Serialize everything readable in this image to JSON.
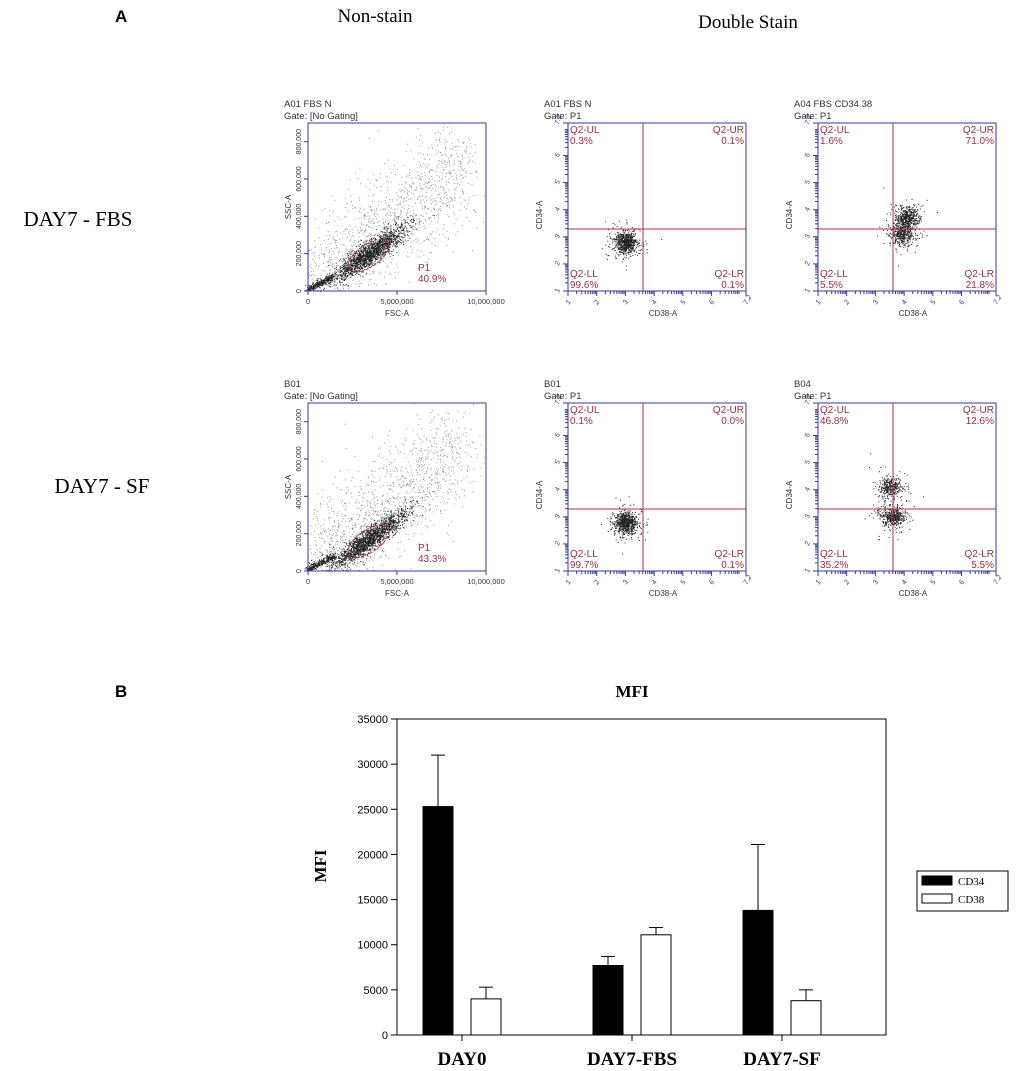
{
  "panel_a": {
    "label": "A",
    "column_headers": [
      "Non-stain",
      "Double Stain"
    ],
    "row_labels": [
      "DAY7 - FBS",
      "DAY7 - SF"
    ],
    "plots": [
      {
        "row": 0,
        "col": 0,
        "kind": "fsc",
        "title": "A01 FBS N",
        "gate": "Gate: [No Gating]",
        "gate_label": "P1",
        "gate_pct": "40.9%",
        "xlabel": "FSC-A",
        "ylabel": "SSC-A",
        "xticks": [
          "0",
          "5,000,000",
          "10,000,000"
        ],
        "yticks": [
          "0",
          "200,000",
          "400,000",
          "600,000",
          "800,000"
        ],
        "cluster": {
          "fsc": 3400000.0,
          "ssc": 200000.0
        }
      },
      {
        "row": 0,
        "col": 1,
        "kind": "quad",
        "title": "A01 FBS N",
        "gate": "Gate: P1",
        "quad": {
          "UL_label": "Q2-UL",
          "UL": "0.3%",
          "UR_label": "Q2-UR",
          "UR": "0.1%",
          "LL_label": "Q2-LL",
          "LL": "99.6%",
          "LR_label": "Q2-LR",
          "LR": "0.1%"
        },
        "xlabel": "CD38-A",
        "ylabel": "CD34-A",
        "clusters": [
          {
            "x": 3.0,
            "y": 2.8,
            "n": 700
          }
        ]
      },
      {
        "row": 0,
        "col": 2,
        "kind": "quad",
        "title": "A04 FBS CD34 38",
        "gate": "Gate: P1",
        "quad": {
          "UL_label": "Q2-UL",
          "UL": "1.6%",
          "UR_label": "Q2-UR",
          "UR": "71.0%",
          "LL_label": "Q2-LL",
          "LL": "5.5%",
          "LR_label": "Q2-LR",
          "LR": "21.8%"
        },
        "xlabel": "CD38-A",
        "ylabel": "CD34-A",
        "clusters": [
          {
            "x": 4.1,
            "y": 3.7,
            "n": 500
          },
          {
            "x": 3.9,
            "y": 3.1,
            "n": 400
          }
        ]
      },
      {
        "row": 1,
        "col": 0,
        "kind": "fsc",
        "title": "B01",
        "gate": "Gate: [No Gating]",
        "gate_label": "P1",
        "gate_pct": "43.3%",
        "xlabel": "FSC-A",
        "ylabel": "SSC-A",
        "xticks": [
          "0",
          "5,000,000",
          "10,000,000"
        ],
        "yticks": [
          "0",
          "200,000",
          "400,000",
          "600,000",
          "800,000"
        ],
        "cluster": {
          "fsc": 3400000.0,
          "ssc": 170000.0
        }
      },
      {
        "row": 1,
        "col": 1,
        "kind": "quad",
        "title": "B01",
        "gate": "Gate: P1",
        "quad": {
          "UL_label": "Q2-UL",
          "UL": "0.1%",
          "UR_label": "Q2-UR",
          "UR": "0.0%",
          "LL_label": "Q2-LL",
          "LL": "99.7%",
          "LR_label": "Q2-LR",
          "LR": "0.1%"
        },
        "xlabel": "CD38-A",
        "ylabel": "CD34-A",
        "clusters": [
          {
            "x": 3.0,
            "y": 2.8,
            "n": 700
          }
        ]
      },
      {
        "row": 1,
        "col": 2,
        "kind": "quad",
        "title": "B04",
        "gate": "Gate: P1",
        "quad": {
          "UL_label": "Q2-UL",
          "UL": "46.8%",
          "UR_label": "Q2-UR",
          "UR": "12.6%",
          "LL_label": "Q2-LL",
          "LL": "35.2%",
          "LR_label": "Q2-LR",
          "LR": "5.5%"
        },
        "xlabel": "CD38-A",
        "ylabel": "CD34-A",
        "clusters": [
          {
            "x": 3.5,
            "y": 4.1,
            "n": 350
          },
          {
            "x": 3.6,
            "y": 3.0,
            "n": 450
          }
        ]
      }
    ],
    "log_ticks": [
      "1",
      "2",
      "3",
      "4",
      "5",
      "6",
      "7.2"
    ],
    "colors": {
      "axis": "#3a3a9a",
      "gate": "#b03045",
      "text": "#9a3040",
      "dots": "#222222"
    }
  },
  "chart_data": {
    "panel_label": "B",
    "type": "bar",
    "title": "MFI",
    "xlabel": "",
    "ylabel": "MFI",
    "categories": [
      "DAY0",
      "DAY7-FBS",
      "DAY7-SF"
    ],
    "series": [
      {
        "name": "CD34",
        "values": [
          25300,
          7700,
          13800
        ],
        "errors": [
          5700,
          1000,
          7300
        ],
        "color": "#000000"
      },
      {
        "name": "CD38",
        "values": [
          4000,
          11100,
          3800
        ],
        "errors": [
          1300,
          800,
          1200
        ],
        "color": "#ffffff"
      }
    ],
    "ylim": [
      0,
      35000
    ],
    "yticks": [
      0,
      5000,
      10000,
      15000,
      20000,
      25000,
      30000,
      35000
    ],
    "grid": false,
    "legend": "right"
  }
}
